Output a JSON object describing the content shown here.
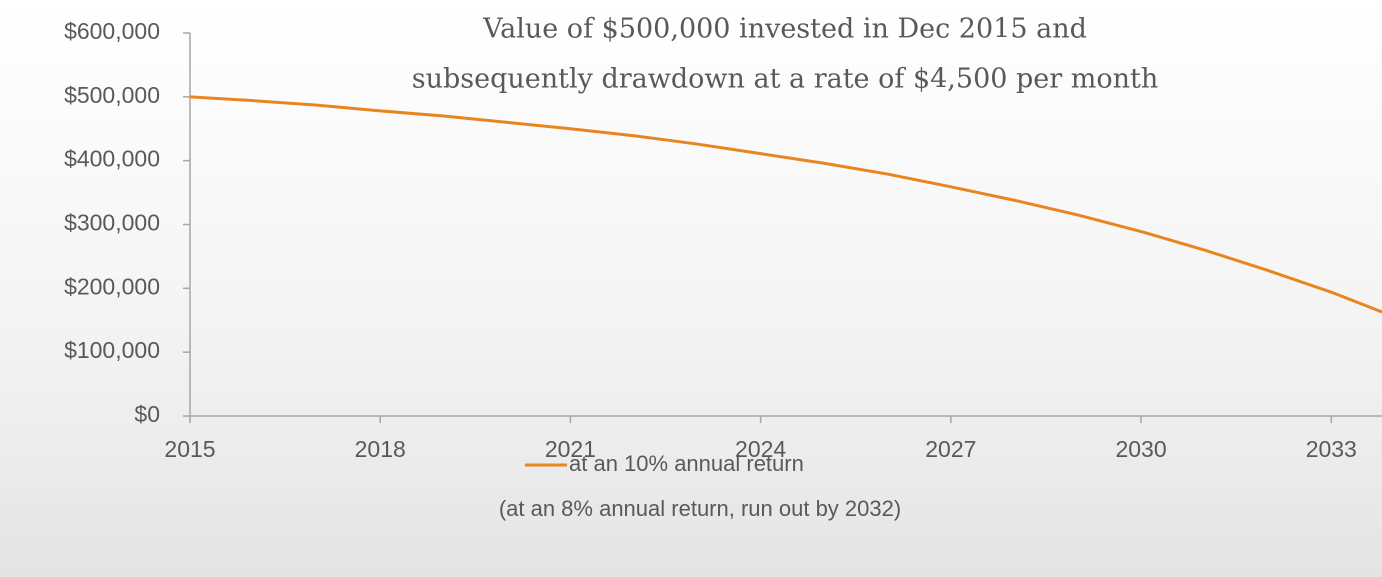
{
  "chart_data": {
    "type": "line",
    "title": [
      "Value of $500,000 invested in Dec 2015 and",
      "subsequently drawdown at a rate of $4,500 per month"
    ],
    "x": [
      2015,
      2016,
      2017,
      2018,
      2019,
      2020,
      2021,
      2022,
      2023,
      2024,
      2025,
      2026,
      2027,
      2028,
      2029,
      2030,
      2031,
      2032,
      2033,
      2033.8
    ],
    "series": [
      {
        "name": "at an 10% annual return",
        "color": "#e8851f",
        "values": [
          500000,
          494000,
          487000,
          478000,
          470000,
          460000,
          450000,
          439000,
          426000,
          411000,
          396000,
          379000,
          359000,
          338000,
          315000,
          289000,
          260000,
          228000,
          194000,
          163000
        ]
      }
    ],
    "annotation": "(at an 8% annual return, run out by 2032)",
    "xlim": [
      2015,
      2033.8
    ],
    "xticks": [
      2015,
      2018,
      2021,
      2024,
      2027,
      2030,
      2033
    ],
    "ylim": [
      0,
      600000
    ],
    "yticks": [
      {
        "value": 0,
        "label": "$0"
      },
      {
        "value": 100000,
        "label": "$100,000"
      },
      {
        "value": 200000,
        "label": "$200,000"
      },
      {
        "value": 300000,
        "label": "$300,000"
      },
      {
        "value": 400000,
        "label": "$400,000"
      },
      {
        "value": 500000,
        "label": "$500,000"
      },
      {
        "value": 600000,
        "label": "$600,000"
      }
    ],
    "grid": false,
    "legend": "bottom"
  }
}
